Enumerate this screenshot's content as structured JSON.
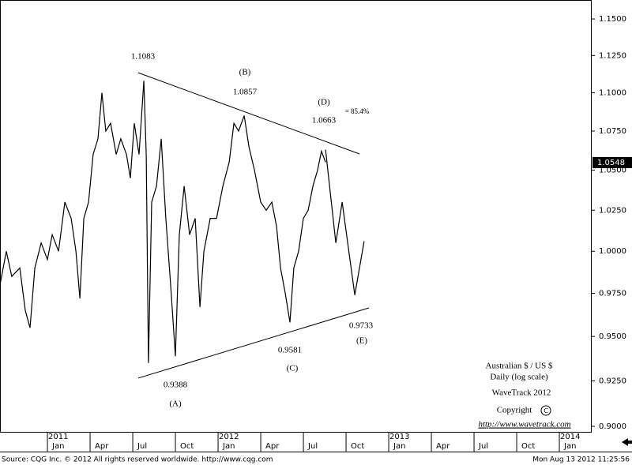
{
  "chart_data": {
    "type": "line",
    "log_scale": true,
    "grid": false,
    "xlim": [
      2010.722,
      2014.185
    ],
    "ylim": [
      0.8966,
      1.1632
    ],
    "yticks": [
      {
        "value": 0.9,
        "label": "0.9000"
      },
      {
        "value": 0.925,
        "label": "0.9250"
      },
      {
        "value": 0.95,
        "label": "0.9500"
      },
      {
        "value": 0.975,
        "label": "0.9750"
      },
      {
        "value": 1.0,
        "label": "1.0000"
      },
      {
        "value": 1.025,
        "label": "1.0250"
      },
      {
        "value": 1.05,
        "label": "1.0500"
      },
      {
        "value": 1.075,
        "label": "1.0750"
      },
      {
        "value": 1.1,
        "label": "1.1000"
      },
      {
        "value": 1.125,
        "label": "1.1250"
      },
      {
        "value": 1.15,
        "label": "1.1500"
      }
    ],
    "xticks": [
      {
        "value": 2011.0,
        "label": "Jan"
      },
      {
        "value": 2011.25,
        "label": "Apr"
      },
      {
        "value": 2011.5,
        "label": "Jul"
      },
      {
        "value": 2011.75,
        "label": "Oct"
      },
      {
        "value": 2012.0,
        "label": "Jan"
      },
      {
        "value": 2012.25,
        "label": "Apr"
      },
      {
        "value": 2012.5,
        "label": "Jul"
      },
      {
        "value": 2012.75,
        "label": "Oct"
      },
      {
        "value": 2013.0,
        "label": "Jan"
      },
      {
        "value": 2013.25,
        "label": "Apr"
      },
      {
        "value": 2013.5,
        "label": "Jul"
      },
      {
        "value": 2013.75,
        "label": "Oct"
      },
      {
        "value": 2014.0,
        "label": "Jan"
      }
    ],
    "x_year_labels": [
      2011,
      2012,
      2013,
      2014
    ],
    "series": [
      {
        "color": "#000000",
        "x": [
          2010.722,
          2010.759,
          2010.791,
          2010.838,
          2010.87,
          2010.898,
          2010.926,
          2010.963,
          2011.0,
          2011.028,
          2011.065,
          2011.102,
          2011.139,
          2011.167,
          2011.19,
          2011.213,
          2011.241,
          2011.268,
          2011.296,
          2011.319,
          2011.342,
          2011.37,
          2011.403,
          2011.43,
          2011.463,
          2011.486,
          2011.509,
          2011.537,
          2011.565,
          2011.579,
          2011.592,
          2011.611,
          2011.639,
          2011.667,
          2011.694,
          2011.722,
          2011.75,
          2011.773,
          2011.801,
          2011.833,
          2011.866,
          2011.894,
          2011.917,
          2011.954,
          2011.991,
          2012.028,
          2012.065,
          2012.093,
          2012.12,
          2012.153,
          2012.181,
          2012.213,
          2012.25,
          2012.282,
          2012.315,
          2012.343,
          2012.366,
          2012.394,
          2012.421,
          2012.444,
          2012.472,
          2012.5,
          2012.528,
          2012.556,
          2012.583,
          2012.606,
          2012.63
        ],
        "values": [
          0.98,
          1.0,
          0.985,
          0.99,
          0.965,
          0.955,
          0.99,
          1.005,
          0.995,
          1.01,
          1.0,
          1.03,
          1.02,
          1.0,
          0.972,
          1.02,
          1.03,
          1.06,
          1.07,
          1.1,
          1.075,
          1.08,
          1.06,
          1.07,
          1.06,
          1.045,
          1.08,
          1.06,
          1.108,
          1.06,
          0.935,
          1.03,
          1.04,
          1.07,
          1.02,
          0.98,
          0.9388,
          1.01,
          1.04,
          1.01,
          1.02,
          0.967,
          1.0,
          1.02,
          1.02,
          1.04,
          1.055,
          1.08,
          1.075,
          1.085,
          1.065,
          1.05,
          1.03,
          1.025,
          1.03,
          1.015,
          0.99,
          0.975,
          0.9581,
          0.99,
          1.0,
          1.02,
          1.025,
          1.04,
          1.05,
          1.062,
          1.055
        ]
      },
      {
        "color": "#000000",
        "x": [
          2012.63,
          2012.69,
          2012.727,
          2012.801,
          2012.856
        ],
        "values": [
          1.063,
          1.005,
          1.03,
          0.974,
          1.006
        ]
      }
    ],
    "trendlines": [
      {
        "x": [
          2011.532,
          2012.829
        ],
        "values": [
          1.1134,
          1.0603
        ]
      },
      {
        "x": [
          2011.532,
          2012.884
        ],
        "values": [
          0.9265,
          0.9665
        ]
      }
    ],
    "last_price": {
      "value": 1.0548,
      "label": "1.0548"
    },
    "annotations": [
      "1.1083",
      "(B)",
      "1.0857",
      "(D)",
      "= 85.4%",
      "1.0663",
      "0.9388",
      "(A)",
      "0.9581",
      "(C)",
      "0.9733",
      "(E)"
    ],
    "notes": [
      "Australian $ / US $",
      "Daily (log scale)",
      "WaveTrack 2012",
      "Copyright",
      "http://www.wavetrack.com"
    ],
    "footer_left": "Source: CQG Inc. © 2012 All rights reserved worldwide.  http://www.cqg.com",
    "footer_right": "Mon Aug 13 2012 11:25:56"
  }
}
